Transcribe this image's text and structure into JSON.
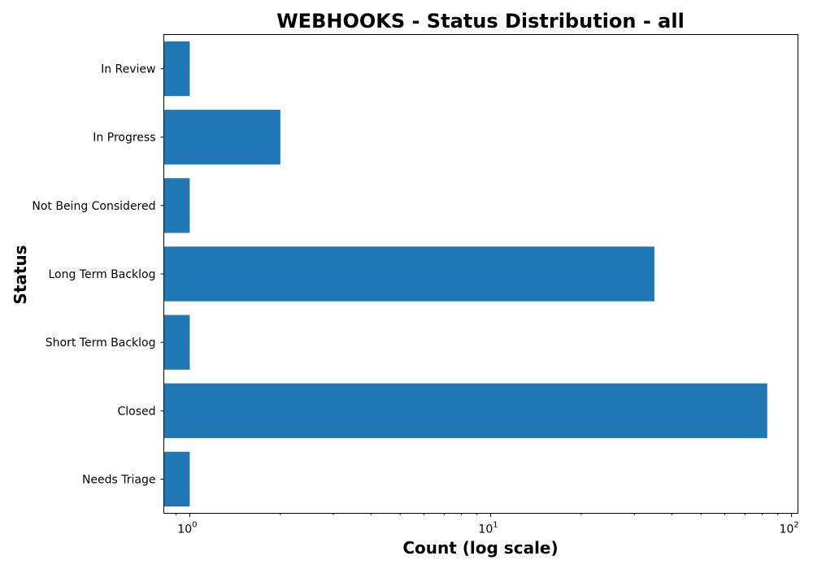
{
  "chart_data": {
    "type": "bar",
    "orientation": "horizontal",
    "title": "WEBHOOKS - Status Distribution - all",
    "xlabel": "Count (log scale)",
    "ylabel": "Status",
    "x_scale": "log",
    "xlim": [
      0.82,
      105
    ],
    "x_ticks": [
      {
        "value": 1,
        "base": "10",
        "exp": "0"
      },
      {
        "value": 10,
        "base": "10",
        "exp": "1"
      },
      {
        "value": 100,
        "base": "10",
        "exp": "2"
      }
    ],
    "categories": [
      "In Review",
      "In Progress",
      "Not Being Considered",
      "Long Term Backlog",
      "Short Term Backlog",
      "Closed",
      "Needs Triage"
    ],
    "values": [
      1,
      2,
      1,
      35,
      1,
      83,
      1
    ],
    "bar_color": "#1f77b4",
    "grid": false,
    "legend": "none"
  }
}
